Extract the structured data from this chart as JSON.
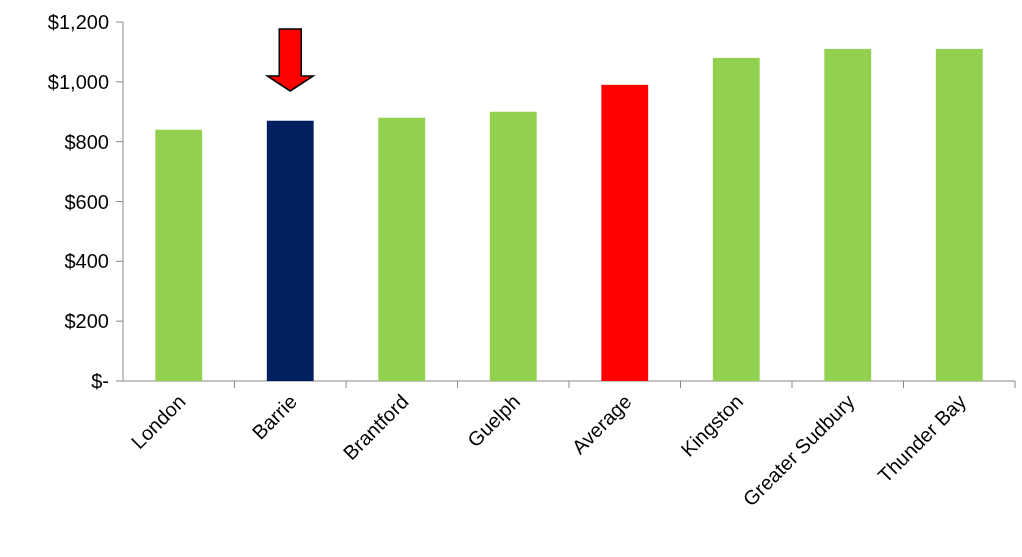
{
  "chart_data": {
    "type": "bar",
    "categories": [
      "London",
      "Barrie",
      "Brantford",
      "Guelph",
      "Average",
      "Kingston",
      "Greater Sudbury",
      "Thunder Bay"
    ],
    "values": [
      840,
      870,
      880,
      900,
      990,
      1080,
      1110,
      1110
    ],
    "colors": [
      "#92d050",
      "#002060",
      "#92d050",
      "#92d050",
      "#ff0000",
      "#92d050",
      "#92d050",
      "#92d050"
    ],
    "ylim": [
      0,
      1200
    ],
    "yticks": [
      {
        "value": 0,
        "label": "$-"
      },
      {
        "value": 200,
        "label": "$200"
      },
      {
        "value": 400,
        "label": "$400"
      },
      {
        "value": 600,
        "label": "$600"
      },
      {
        "value": 800,
        "label": "$800"
      },
      {
        "value": 1000,
        "label": "$1,000"
      },
      {
        "value": 1200,
        "label": "$1,200"
      }
    ],
    "grid": false
  }
}
